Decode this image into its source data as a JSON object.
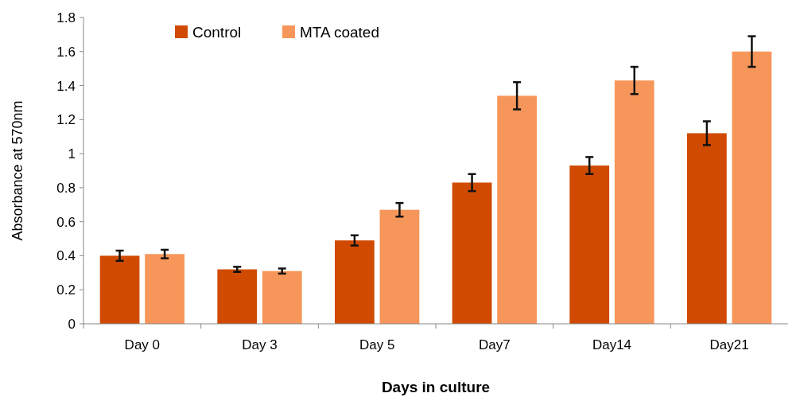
{
  "chart_data": {
    "type": "bar",
    "xlabel": "Days in culture",
    "ylabel": "Absorbance at 570nm",
    "categories": [
      "Day 0",
      "Day 3",
      "Day 5",
      "Day7",
      "Day14",
      "Day21"
    ],
    "series": [
      {
        "name": "Control",
        "color": "#d04a02",
        "values": [
          0.4,
          0.32,
          0.49,
          0.83,
          0.93,
          1.12
        ],
        "errors": [
          0.03,
          0.015,
          0.03,
          0.05,
          0.05,
          0.07
        ]
      },
      {
        "name": "MTA coated",
        "color": "#f7965a",
        "values": [
          0.41,
          0.31,
          0.67,
          1.34,
          1.43,
          1.6
        ],
        "errors": [
          0.025,
          0.015,
          0.04,
          0.08,
          0.08,
          0.09
        ]
      }
    ],
    "ylim": [
      0,
      1.8
    ],
    "yticks": [
      0,
      0.2,
      0.4,
      0.6,
      0.8,
      1,
      1.2,
      1.4,
      1.6,
      1.8
    ],
    "grid": false,
    "legend": "top left"
  }
}
